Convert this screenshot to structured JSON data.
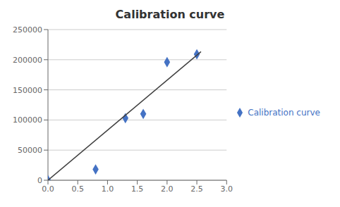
{
  "chart_data": {
    "type": "scatter",
    "title": "Calibration curve",
    "series": [
      {
        "name": "Calibration curve",
        "type": "scatter",
        "color": "#4472c4",
        "marker": "diamond",
        "x": [
          0.0,
          0.8,
          1.3,
          1.6,
          2.0,
          2.5
        ],
        "values": [
          0,
          18000,
          103000,
          110000,
          196000,
          209000
        ]
      },
      {
        "type": "line",
        "color": "#404040",
        "x": [
          0.0,
          2.57
        ],
        "values": [
          0,
          213310
        ]
      }
    ],
    "xlim": [
      0,
      3
    ],
    "ylim": [
      0,
      250000
    ],
    "xticks": [
      {
        "value": 0,
        "label": "0.0"
      },
      0.5,
      {
        "value": 1.0,
        "label": "1.0"
      },
      1.5,
      {
        "value": 2.0,
        "label": "2.0"
      },
      2.5,
      {
        "value": 3.0,
        "label": "3.0"
      }
    ],
    "yticks": [
      0,
      50000,
      100000,
      150000,
      200000,
      250000
    ],
    "grid": "y",
    "legend": "right"
  }
}
